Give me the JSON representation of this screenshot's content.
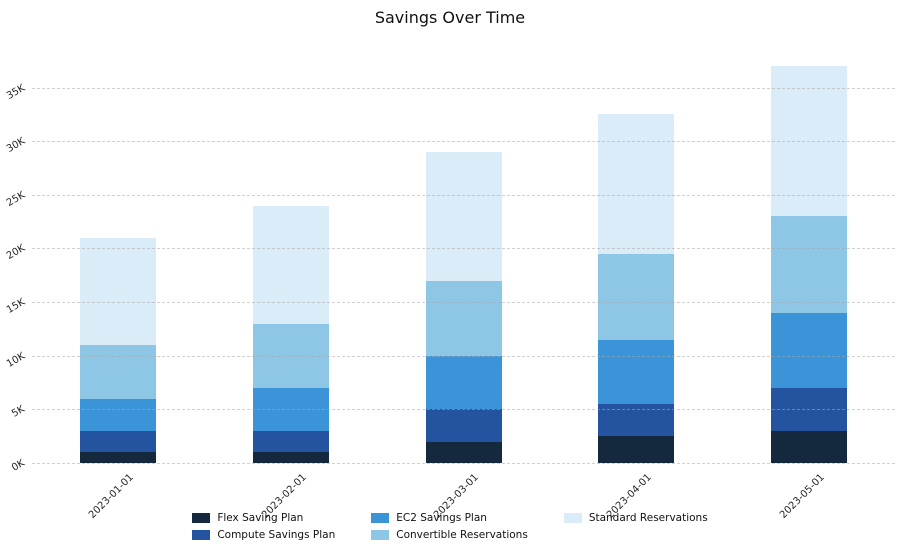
{
  "chart_data": {
    "type": "bar",
    "stacked": true,
    "title": "Savings Over Time",
    "xlabel": "",
    "ylabel": "",
    "categories": [
      "2023-01-01",
      "2023-02-01",
      "2023-03-01",
      "2023-04-01",
      "2023-05-01"
    ],
    "series": [
      {
        "name": "Flex Saving Plan",
        "color": "#15293e",
        "values": [
          1000,
          1000,
          2000,
          2500,
          3000
        ]
      },
      {
        "name": "Compute Savings Plan",
        "color": "#24549f",
        "values": [
          2000,
          2000,
          3000,
          3000,
          4000
        ]
      },
      {
        "name": "EC2 Savings Plan",
        "color": "#3b94d7",
        "values": [
          3000,
          4000,
          5000,
          6000,
          7000
        ]
      },
      {
        "name": "Convertible Reservations",
        "color": "#8ec6e6",
        "values": [
          5000,
          6000,
          7000,
          8000,
          9000
        ]
      },
      {
        "name": "Standard Reservations",
        "color": "#daecf8",
        "values": [
          10000,
          11000,
          12000,
          13000,
          14000
        ]
      }
    ],
    "totals": [
      21000,
      24000,
      29000,
      32500,
      37000
    ],
    "y_ticks": [
      "0K",
      "5K",
      "10K",
      "15K",
      "20K",
      "25K",
      "30K",
      "35K"
    ],
    "y_tick_values": [
      0,
      5000,
      10000,
      15000,
      20000,
      25000,
      30000,
      35000
    ],
    "ylim": [
      0,
      38500
    ],
    "grid": true,
    "legend_position": "bottom",
    "legend_rows": 2
  }
}
